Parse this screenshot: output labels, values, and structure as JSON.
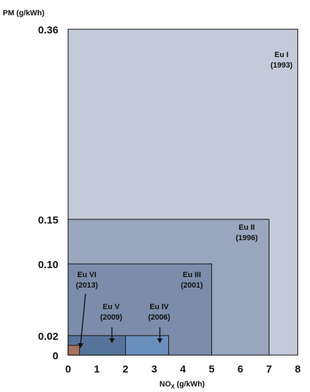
{
  "chart_data": {
    "type": "area",
    "title": "",
    "ylabel": "PM (g/kWh)",
    "xlabel_main": "NO",
    "xlabel_sub": "X",
    "xlabel_unit": " (g/kWh)",
    "y_ticks": [
      {
        "value": 0.36,
        "label": "0.36"
      },
      {
        "value": 0.15,
        "label": "0.15"
      },
      {
        "value": 0.1,
        "label": "0.10"
      },
      {
        "value": 0.02,
        "label": "0.02"
      },
      {
        "value": 0,
        "label": "0"
      }
    ],
    "x_ticks": [
      "0",
      "1",
      "2",
      "3",
      "4",
      "5",
      "6",
      "7",
      "8"
    ],
    "xlim": [
      0,
      8
    ],
    "ylim": [
      0,
      0.36
    ],
    "y_scale": "piecewise (non-linear)",
    "stages": [
      {
        "name": "Eu I",
        "year": "(1993)",
        "nox": 8.0,
        "pm": 0.36,
        "fill": "#c4cad8"
      },
      {
        "name": "Eu II",
        "year": "(1996)",
        "nox": 7.0,
        "pm": 0.15,
        "fill": "#9aa6be"
      },
      {
        "name": "Eu III",
        "year": "(2001)",
        "nox": 5.0,
        "pm": 0.1,
        "fill": "#7c8dab"
      },
      {
        "name": "Eu IV",
        "year": "(2006)",
        "nox": 3.5,
        "pm": 0.02,
        "fill": "#6b8fbd"
      },
      {
        "name": "Eu V",
        "year": "(2009)",
        "nox": 2.0,
        "pm": 0.02,
        "fill": "#56749a"
      },
      {
        "name": "Eu VI",
        "year": "(2013)",
        "nox": 0.4,
        "pm": 0.01,
        "fill": "#a8705e"
      }
    ]
  }
}
